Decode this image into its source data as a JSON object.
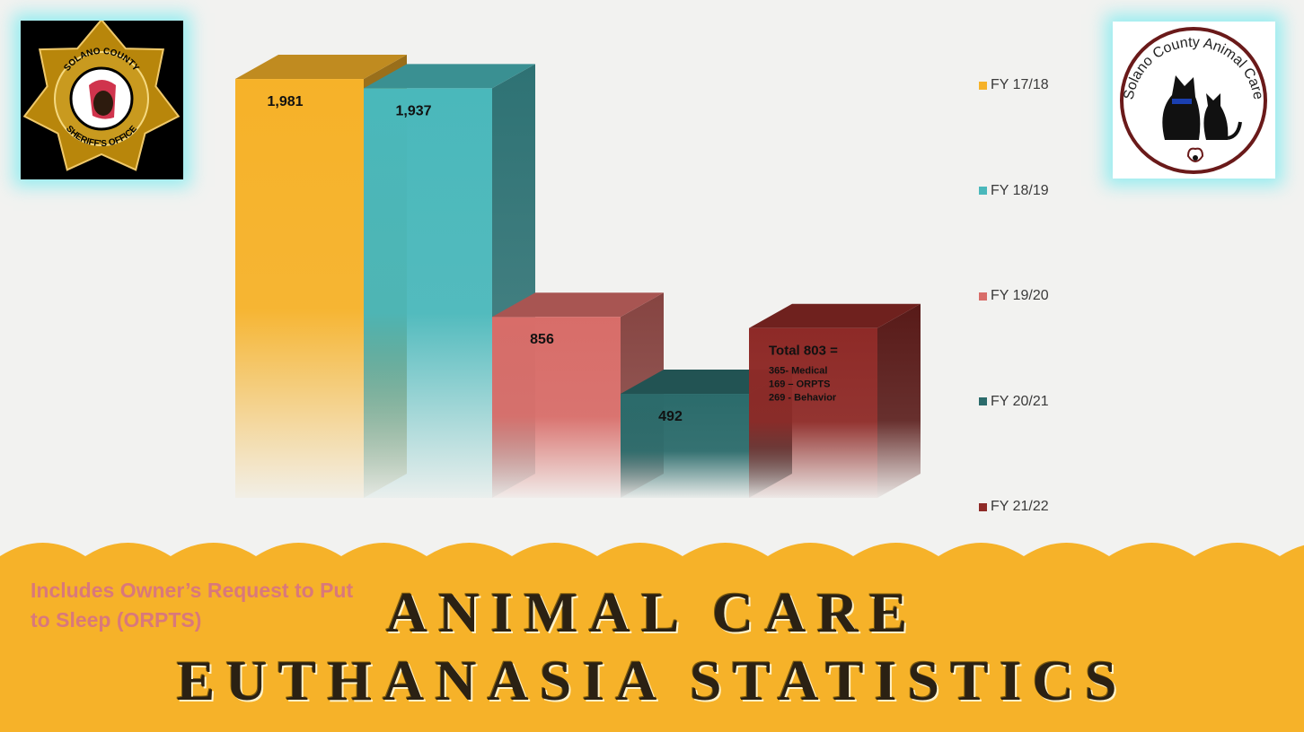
{
  "chart_data": {
    "type": "bar",
    "categories": [
      "FY 17/18",
      "FY 18/19",
      "FY 19/20",
      "FY 20/21",
      "FY 21/22"
    ],
    "values": [
      1981,
      1937,
      856,
      492,
      803
    ],
    "data_labels": [
      "1,981",
      "1,937",
      "856",
      "492",
      "Total 803 ="
    ],
    "breakdown_lines": [
      "365- Medical",
      "169 – ORPTS",
      "269 - Behavior"
    ],
    "legend": [
      "FY 17/18",
      "FY 18/19",
      "FY 19/20",
      "FY 20/21",
      "FY 21/22"
    ],
    "legend_position": "right",
    "colors": [
      "#f6b229",
      "#4ab8bb",
      "#d86d69",
      "#2b6b6b",
      "#8e2a27"
    ],
    "ylim": [
      0,
      2100
    ],
    "grid": false,
    "style": "3d"
  },
  "note_text": "Includes Owner’s Request to Put to Sleep (ORPTS)",
  "title_line1": "ANIMAL CARE",
  "title_line2": "EUTHANASIA STATISTICS",
  "logos": {
    "sheriff": {
      "text_top": "SOLANO COUNTY",
      "text_bottom": "SHERIFF'S OFFICE"
    },
    "animal_care": {
      "text": "Solano County Animal Care"
    }
  }
}
